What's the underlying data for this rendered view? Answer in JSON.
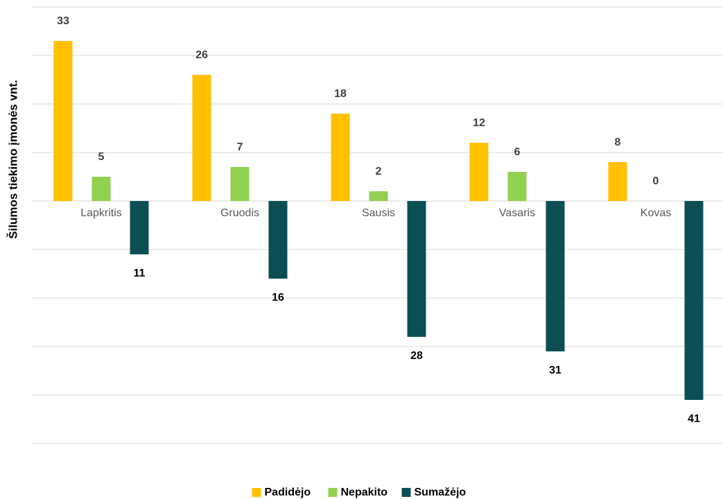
{
  "chart_data": {
    "type": "bar",
    "y_axis_label": "Šilumos tiekimo įmonės vnt.",
    "categories": [
      "Lapkritis",
      "Gruodis",
      "Sausis",
      "Vasaris",
      "Kovas"
    ],
    "series": [
      {
        "name": "Padidėjo",
        "color": "#FFC000",
        "values": [
          33,
          26,
          18,
          12,
          8
        ]
      },
      {
        "name": "Nepakito",
        "color": "#92D050",
        "values": [
          5,
          7,
          2,
          6,
          0
        ]
      },
      {
        "name": "Sumažėjo",
        "color": "#0B4F55",
        "values": [
          -11,
          -16,
          -28,
          -31,
          -41
        ],
        "value_labels": [
          "11",
          "16",
          "28",
          "31",
          "41"
        ]
      }
    ],
    "ylim": [
      -50,
      40
    ],
    "yticks": [
      -50,
      -40,
      -30,
      -20,
      -10,
      0,
      10,
      20,
      30,
      40
    ],
    "grid": true,
    "legend": "bottom"
  }
}
